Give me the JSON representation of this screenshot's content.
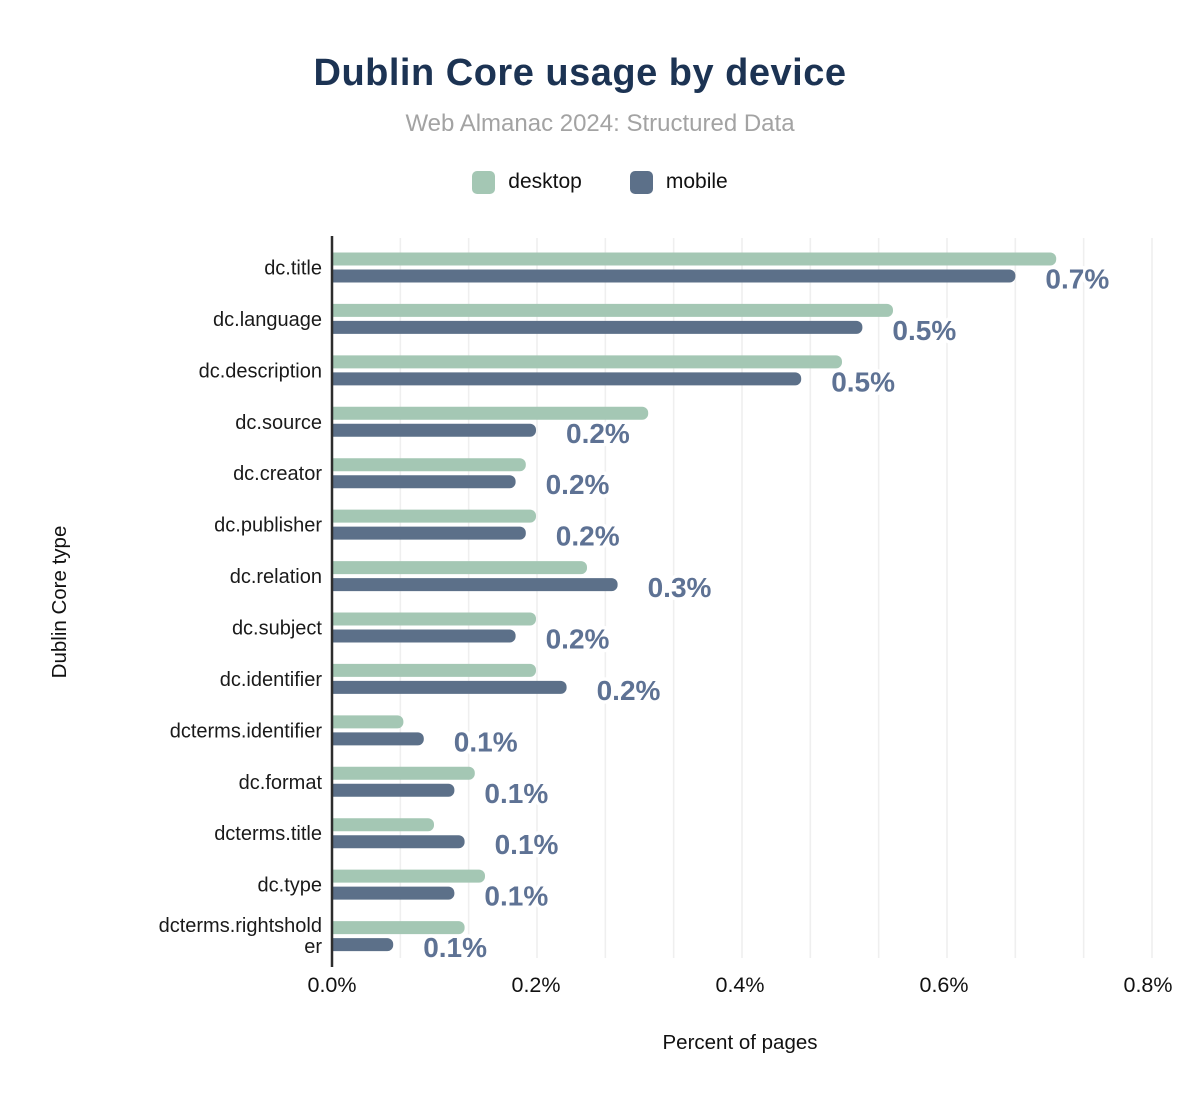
{
  "header": {
    "title": "Dublin Core usage by device",
    "subtitle": "Web Almanac 2024: Structured Data"
  },
  "legend": [
    {
      "label": "desktop",
      "color": "#a4c7b4"
    },
    {
      "label": "mobile",
      "color": "#5c7089"
    }
  ],
  "chart_data": {
    "type": "bar",
    "orientation": "horizontal",
    "title": "Dublin Core usage by device",
    "subtitle": "Web Almanac 2024: Structured Data",
    "xlabel": "Percent of pages",
    "ylabel": "Dublin Core type",
    "categories": [
      "dc.title",
      "dc.language",
      "dc.description",
      "dc.source",
      "dc.creator",
      "dc.publisher",
      "dc.relation",
      "dc.subject",
      "dc.identifier",
      "dcterms.identifier",
      "dc.format",
      "dcterms.title",
      "dc.type",
      "dcterms.rightsholder"
    ],
    "series": [
      {
        "name": "desktop",
        "color": "#a4c7b4",
        "values": [
          0.71,
          0.55,
          0.5,
          0.31,
          0.19,
          0.2,
          0.25,
          0.2,
          0.2,
          0.07,
          0.14,
          0.1,
          0.15,
          0.13
        ]
      },
      {
        "name": "mobile",
        "color": "#5c7089",
        "values": [
          0.67,
          0.52,
          0.46,
          0.2,
          0.18,
          0.19,
          0.28,
          0.18,
          0.23,
          0.09,
          0.12,
          0.13,
          0.12,
          0.06
        ]
      }
    ],
    "data_labels": [
      "0.7%",
      "0.5%",
      "0.5%",
      "0.2%",
      "0.2%",
      "0.2%",
      "0.3%",
      "0.2%",
      "0.2%",
      "0.1%",
      "0.1%",
      "0.1%",
      "0.1%",
      "0.1%"
    ],
    "data_label_series": "mobile",
    "x_ticks": [
      "0.0%",
      "0.2%",
      "0.4%",
      "0.6%",
      "0.8%"
    ],
    "x_tick_values": [
      0,
      0.2,
      0.4,
      0.6,
      0.8
    ],
    "xlim": [
      0,
      0.8
    ],
    "grid": "vertical-minor-thirds",
    "legend_position": "top",
    "value_unit": "percent of pages"
  },
  "colors": {
    "title": "#1c3353",
    "subtitle": "#a3a3a3",
    "value_label": "#5e7294",
    "axis_line": "#2d2d2d",
    "gridline": "#efefef",
    "tick_text": "#111111",
    "background": "#ffffff"
  }
}
